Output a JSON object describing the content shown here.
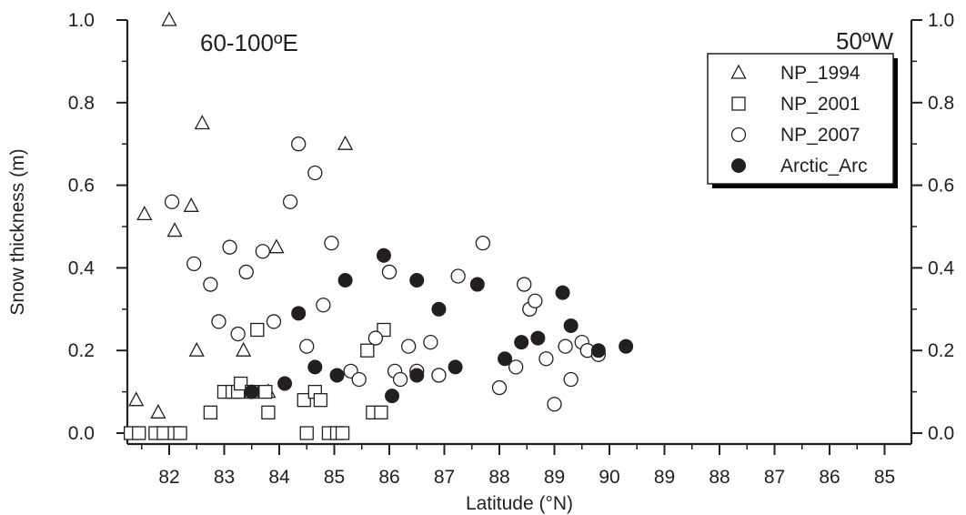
{
  "chart_data": {
    "type": "scatter",
    "xlabel": "Latitude (°N)",
    "ylabel": "Snow thickness (m)",
    "ylim": [
      0,
      1.0
    ],
    "x_axis_note": "latitude increases from 82 to 90 (North Pole) along 60-100°E, then decreases to 85 along 50°W",
    "x_tick_labels": [
      "82",
      "83",
      "84",
      "85",
      "86",
      "87",
      "88",
      "89",
      "90",
      "89",
      "88",
      "87",
      "86",
      "85"
    ],
    "y_ticks": [
      "0.0",
      "0.2",
      "0.4",
      "0.6",
      "0.8",
      "1.0"
    ],
    "y_right_ticks": [
      "0.0",
      "0.2",
      "0.4",
      "0.6",
      "0.8",
      "1.0"
    ],
    "annotations": [
      {
        "text": "60-100ºE",
        "side": "left"
      },
      {
        "text": "50ºW",
        "side": "right"
      }
    ],
    "legend_position": "top-right",
    "series": [
      {
        "name": "NP_1994",
        "marker": "triangle",
        "x": [
          82.0,
          82.6,
          81.55,
          82.4,
          82.1,
          83.95,
          82.5,
          83.35,
          81.4,
          81.8,
          83.8,
          85.2
        ],
        "y": [
          1.0,
          0.75,
          0.53,
          0.55,
          0.49,
          0.45,
          0.2,
          0.2,
          0.08,
          0.05,
          0.1,
          0.7
        ]
      },
      {
        "name": "NP_2001",
        "marker": "square",
        "x": [
          81.3,
          81.45,
          81.75,
          81.9,
          82.1,
          82.2,
          82.75,
          83.0,
          83.15,
          83.25,
          83.3,
          83.5,
          83.6,
          83.75,
          83.8,
          84.45,
          84.5,
          84.65,
          84.75,
          84.9,
          85.05,
          85.15,
          85.6,
          85.7,
          85.85,
          85.9
        ],
        "y": [
          0.0,
          0.0,
          0.0,
          0.0,
          0.0,
          0.0,
          0.05,
          0.1,
          0.1,
          0.1,
          0.12,
          0.1,
          0.25,
          0.1,
          0.05,
          0.08,
          0.0,
          0.1,
          0.08,
          0.0,
          0.0,
          0.0,
          0.2,
          0.05,
          0.05,
          0.25
        ]
      },
      {
        "name": "NP_2007",
        "marker": "circle-open",
        "x": [
          82.05,
          82.45,
          82.75,
          83.1,
          82.9,
          83.25,
          83.4,
          83.7,
          83.9,
          84.2,
          84.35,
          84.65,
          84.8,
          84.95,
          84.5,
          85.3,
          85.45,
          85.75,
          86.0,
          86.1,
          86.2,
          86.35,
          86.5,
          86.75,
          86.9,
          87.25,
          87.7,
          88.0,
          88.3,
          88.45,
          88.55,
          88.65,
          88.85,
          89.0,
          89.2,
          89.3,
          89.5,
          89.6,
          89.8
        ],
        "y": [
          0.56,
          0.41,
          0.36,
          0.45,
          0.27,
          0.24,
          0.39,
          0.44,
          0.27,
          0.56,
          0.7,
          0.63,
          0.31,
          0.46,
          0.21,
          0.15,
          0.13,
          0.23,
          0.39,
          0.15,
          0.13,
          0.21,
          0.15,
          0.22,
          0.14,
          0.38,
          0.46,
          0.11,
          0.16,
          0.36,
          0.3,
          0.32,
          0.18,
          0.07,
          0.21,
          0.13,
          0.22,
          0.2,
          0.19
        ]
      },
      {
        "name": "Arctic_Arc",
        "marker": "circle-filled",
        "x": [
          83.5,
          84.1,
          84.65,
          85.05,
          86.05,
          86.5,
          87.2,
          88.1,
          88.7,
          89.3,
          89.8,
          90.3,
          89.15,
          88.4,
          87.6,
          86.9,
          86.5,
          85.9,
          85.2,
          84.35
        ],
        "y": [
          0.1,
          0.12,
          0.16,
          0.14,
          0.09,
          0.14,
          0.16,
          0.18,
          0.23,
          0.26,
          0.2,
          0.21,
          0.34,
          0.22,
          0.36,
          0.3,
          0.37,
          0.43,
          0.37,
          0.29
        ]
      }
    ]
  }
}
